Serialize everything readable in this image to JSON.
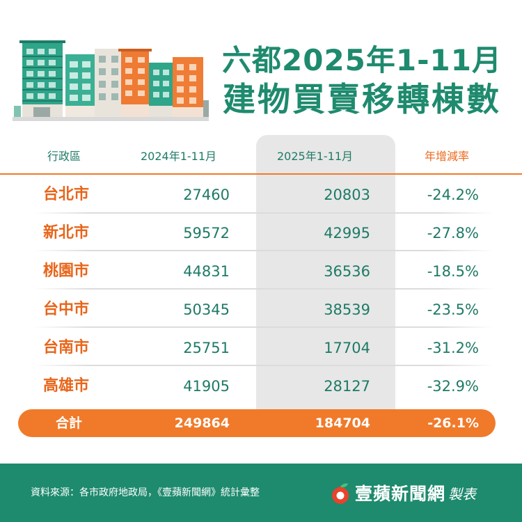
{
  "title": {
    "line1": "六都2025年1-11月",
    "line2": "建物買賣移轉棟數"
  },
  "table": {
    "headers": {
      "district": "行政區",
      "y2024": "2024年1-11月",
      "y2025": "2025年1-11月",
      "rate": "年增減率"
    },
    "rows": [
      {
        "city": "台北市",
        "y2024": "27460",
        "y2025": "20803",
        "rate": "-24.2%"
      },
      {
        "city": "新北市",
        "y2024": "59572",
        "y2025": "42995",
        "rate": "-27.8%"
      },
      {
        "city": "桃園市",
        "y2024": "44831",
        "y2025": "36536",
        "rate": "-18.5%"
      },
      {
        "city": "台中市",
        "y2024": "50345",
        "y2025": "38539",
        "rate": "-23.5%"
      },
      {
        "city": "台南市",
        "y2024": "25751",
        "y2025": "17704",
        "rate": "-31.2%"
      },
      {
        "city": "高雄市",
        "y2024": "41905",
        "y2025": "28127",
        "rate": "-32.9%"
      }
    ],
    "total": {
      "label": "合計",
      "y2024": "249864",
      "y2025": "184704",
      "rate": "-26.1%"
    }
  },
  "footer": {
    "source": "資料來源：各市政府地政局，《壹蘋新聞網》統計彙整",
    "brand": "壹蘋新聞網",
    "made": "製表"
  },
  "colors": {
    "green": "#1e8a6e",
    "orange": "#f07a2a",
    "city_text": "#e8651a",
    "highlight_column": "#e7e7e7"
  },
  "icons": {
    "illustration": "apartment-buildings-illustration",
    "logo": "apple-logo-icon"
  }
}
